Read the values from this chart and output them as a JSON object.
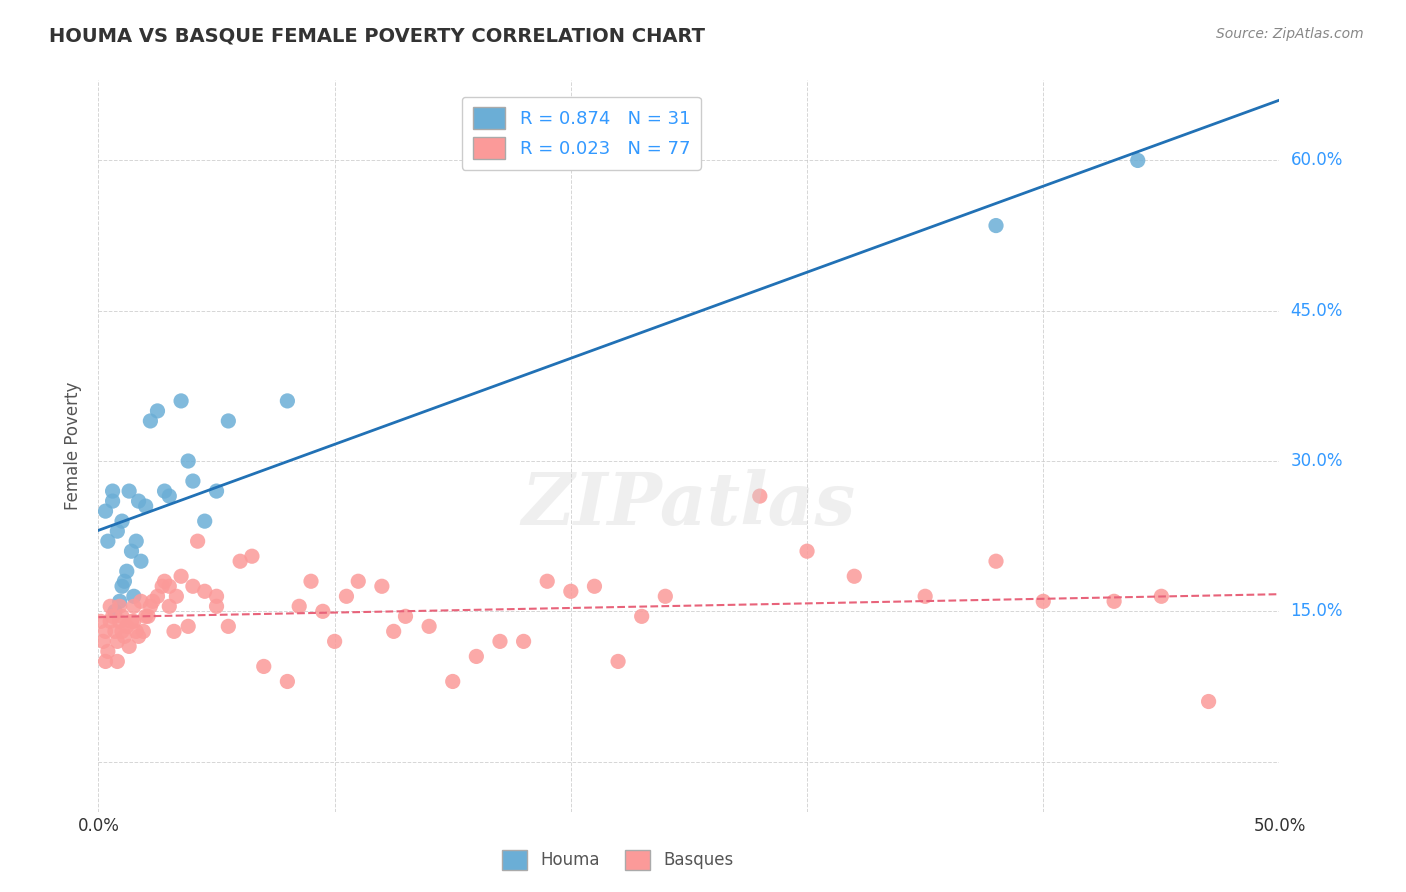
{
  "title": "HOUMA VS BASQUE FEMALE POVERTY CORRELATION CHART",
  "source": "Source: ZipAtlas.com",
  "ylabel": "Female Poverty",
  "xlim": [
    0.0,
    0.5
  ],
  "ylim": [
    -0.05,
    0.68
  ],
  "houma_R": 0.874,
  "houma_N": 31,
  "basque_R": 0.023,
  "basque_N": 77,
  "houma_color": "#6baed6",
  "basque_color": "#fb9a99",
  "houma_line_color": "#2171b5",
  "basque_line_color": "#e8637a",
  "houma_x": [
    0.003,
    0.004,
    0.006,
    0.006,
    0.007,
    0.008,
    0.009,
    0.01,
    0.01,
    0.011,
    0.012,
    0.013,
    0.014,
    0.015,
    0.016,
    0.017,
    0.018,
    0.02,
    0.022,
    0.025,
    0.028,
    0.03,
    0.035,
    0.038,
    0.04,
    0.045,
    0.05,
    0.055,
    0.08,
    0.38,
    0.44
  ],
  "houma_y": [
    0.25,
    0.22,
    0.26,
    0.27,
    0.15,
    0.23,
    0.16,
    0.24,
    0.175,
    0.18,
    0.19,
    0.27,
    0.21,
    0.165,
    0.22,
    0.26,
    0.2,
    0.255,
    0.34,
    0.35,
    0.27,
    0.265,
    0.36,
    0.3,
    0.28,
    0.24,
    0.27,
    0.34,
    0.36,
    0.535,
    0.6
  ],
  "basque_x": [
    0.001,
    0.002,
    0.003,
    0.003,
    0.004,
    0.005,
    0.005,
    0.006,
    0.007,
    0.008,
    0.008,
    0.009,
    0.009,
    0.01,
    0.01,
    0.011,
    0.012,
    0.013,
    0.014,
    0.015,
    0.015,
    0.016,
    0.017,
    0.018,
    0.019,
    0.02,
    0.021,
    0.022,
    0.023,
    0.025,
    0.027,
    0.028,
    0.03,
    0.03,
    0.032,
    0.033,
    0.035,
    0.038,
    0.04,
    0.042,
    0.045,
    0.05,
    0.05,
    0.055,
    0.06,
    0.065,
    0.07,
    0.08,
    0.085,
    0.09,
    0.095,
    0.1,
    0.105,
    0.11,
    0.12,
    0.125,
    0.13,
    0.14,
    0.15,
    0.16,
    0.17,
    0.18,
    0.19,
    0.2,
    0.21,
    0.22,
    0.23,
    0.24,
    0.28,
    0.3,
    0.32,
    0.35,
    0.38,
    0.4,
    0.43,
    0.45,
    0.47
  ],
  "basque_y": [
    0.14,
    0.12,
    0.1,
    0.13,
    0.11,
    0.14,
    0.155,
    0.145,
    0.13,
    0.1,
    0.12,
    0.14,
    0.155,
    0.145,
    0.13,
    0.125,
    0.135,
    0.115,
    0.14,
    0.14,
    0.155,
    0.13,
    0.125,
    0.16,
    0.13,
    0.145,
    0.145,
    0.155,
    0.16,
    0.165,
    0.175,
    0.18,
    0.155,
    0.175,
    0.13,
    0.165,
    0.185,
    0.135,
    0.175,
    0.22,
    0.17,
    0.155,
    0.165,
    0.135,
    0.2,
    0.205,
    0.095,
    0.08,
    0.155,
    0.18,
    0.15,
    0.12,
    0.165,
    0.18,
    0.175,
    0.13,
    0.145,
    0.135,
    0.08,
    0.105,
    0.12,
    0.12,
    0.18,
    0.17,
    0.175,
    0.1,
    0.145,
    0.165,
    0.265,
    0.21,
    0.185,
    0.165,
    0.2,
    0.16,
    0.16,
    0.165,
    0.06
  ],
  "watermark": "ZIPatlas",
  "background_color": "#ffffff",
  "grid_color": "#cccccc",
  "ytick_positions": [
    0.0,
    0.15,
    0.3,
    0.45,
    0.6
  ],
  "ytick_labels_right": [
    "",
    "15.0%",
    "30.0%",
    "45.0%",
    "60.0%"
  ],
  "xtick_positions": [
    0.0,
    0.1,
    0.2,
    0.3,
    0.4,
    0.5
  ],
  "xtick_labels": [
    "0.0%",
    "",
    "",
    "",
    "",
    "50.0%"
  ]
}
